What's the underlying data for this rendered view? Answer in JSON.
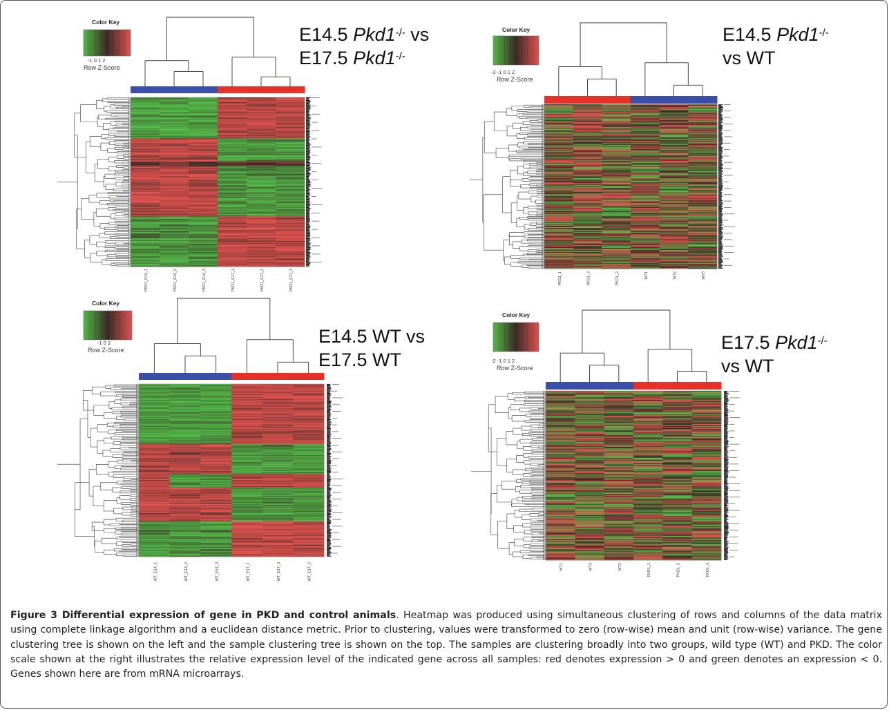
{
  "panels": [
    {
      "id": "p1",
      "title_line1_prefix": "E14.5 ",
      "title_line1_gene": "Pkd1",
      "title_line1_sup": "-/-",
      "title_line1_suffix": " vs",
      "title_line2_prefix": "E17.5 ",
      "title_line2_gene": "Pkd1",
      "title_line2_sup": "-/-",
      "title_line2_suffix": "",
      "color_key_title": "Color Key",
      "color_key_ticks": "-1   0   1   2",
      "color_key_label": "Row Z-Score",
      "group_colors": [
        "#3b4fa8",
        "#3b4fa8",
        "#3b4fa8",
        "#e53228",
        "#e53228",
        "#e53228"
      ],
      "samples": [
        "PKD1_E14_1",
        "PKD1_E14_2",
        "PKD1_E14_3",
        "PKD1_E17_1",
        "PKD1_E17_2",
        "PKD1_E17_3"
      ],
      "blocks": [
        {
          "rows": 45,
          "pattern": [
            -1,
            -1,
            -1,
            1,
            1,
            1
          ]
        },
        {
          "rows": 25,
          "pattern": [
            1,
            1,
            1,
            -1,
            -1,
            -1
          ]
        },
        {
          "rows": 5,
          "pattern": [
            0.3,
            0.3,
            0.3,
            0.3,
            0.3,
            0.3
          ]
        },
        {
          "rows": 55,
          "pattern": [
            1,
            1,
            1,
            -1,
            -1,
            -1
          ]
        },
        {
          "rows": 55,
          "pattern": [
            -1,
            -1,
            -1,
            1,
            1,
            1
          ]
        }
      ]
    },
    {
      "id": "p2",
      "title_line1_prefix": "E14.5 ",
      "title_line1_gene": "Pkd1",
      "title_line1_sup": "-/-",
      "title_line1_suffix": "",
      "title_line2_prefix": "vs WT",
      "title_line2_gene": "",
      "title_line2_sup": "",
      "title_line2_suffix": "",
      "color_key_title": "Color Key",
      "color_key_ticks": "-2  -1   0   1   2",
      "color_key_label": "Row Z-Score",
      "group_colors": [
        "#e53228",
        "#e53228",
        "#e53228",
        "#3b4fa8",
        "#3b4fa8",
        "#3b4fa8"
      ],
      "samples": [
        "PKD1_1",
        "PKD1_3",
        "PKD1_2",
        "WT1",
        "WT2",
        "WT3"
      ],
      "blocks": [
        {
          "rows": 230,
          "pattern": [
            0,
            0,
            0,
            0,
            0,
            0
          ]
        }
      ]
    },
    {
      "id": "p3",
      "title_line1_prefix": "E14.5 WT vs",
      "title_line1_gene": "",
      "title_line1_sup": "",
      "title_line1_suffix": "",
      "title_line2_prefix": "E17.5 WT",
      "title_line2_gene": "",
      "title_line2_sup": "",
      "title_line2_suffix": "",
      "color_key_title": "Color Key",
      "color_key_ticks": "-1   0   1",
      "color_key_label": "Row Z-Score",
      "group_colors": [
        "#3b4fa8",
        "#3b4fa8",
        "#3b4fa8",
        "#e53228",
        "#e53228",
        "#e53228"
      ],
      "samples": [
        "WT_E14_1",
        "WT_E14_2",
        "WT_E14_3",
        "WT_E17_1",
        "WT_E17_3",
        "WT_E17_2"
      ],
      "blocks": [
        {
          "rows": 80,
          "pattern": [
            -1,
            -1,
            -1,
            1,
            1,
            1
          ]
        },
        {
          "rows": 40,
          "pattern": [
            1,
            1,
            1,
            -1,
            -1,
            -1
          ]
        },
        {
          "rows": 18,
          "pattern": [
            1,
            -1,
            -1,
            1,
            1,
            1
          ]
        },
        {
          "rows": 45,
          "pattern": [
            1,
            1,
            1,
            -1,
            -1,
            -1
          ]
        },
        {
          "rows": 47,
          "pattern": [
            -1,
            -1,
            -1,
            1,
            1,
            1
          ]
        }
      ]
    },
    {
      "id": "p4",
      "title_line1_prefix": "E17.5 ",
      "title_line1_gene": "Pkd1",
      "title_line1_sup": "-/-",
      "title_line1_suffix": "",
      "title_line2_prefix": "vs WT",
      "title_line2_gene": "",
      "title_line2_sup": "",
      "title_line2_suffix": "",
      "color_key_title": "Color Key",
      "color_key_ticks": "-2  -1   0   1   2",
      "color_key_label": "Row Z-Score",
      "group_colors": [
        "#3b4fa8",
        "#3b4fa8",
        "#3b4fa8",
        "#e53228",
        "#e53228",
        "#e53228"
      ],
      "samples": [
        "WT1",
        "WT3",
        "WT2",
        "PKD1_1",
        "PKD1_2",
        "PKD1_3"
      ],
      "blocks": [
        {
          "rows": 230,
          "pattern": [
            0,
            0,
            0,
            0,
            0,
            0
          ]
        }
      ]
    }
  ],
  "caption": {
    "label": "Figure 3 Differential expression of gene in PKD and control animals",
    "text": ". Heatmap was produced using simultaneous clustering of rows and columns of the data matrix using complete linkage algorithm and a euclidean distance metric. Prior to clustering, values were transformed to zero (row-wise) mean and unit (row-wise) variance. The gene clustering tree is shown on the left and the sample clustering tree is shown on the top. The samples are clustering broadly into two groups, wild type (WT) and PKD. The color scale shown at the right illustrates the relative expression level of the indicated gene across all samples: red denotes expression > 0 and green denotes an expression < 0. Genes shown here are from mRNA microarrays."
  },
  "colors": {
    "heat_red": "#e0524f",
    "heat_green": "#52b948",
    "heat_dark": "#3b2b25",
    "group_blue": "#3b4fa8",
    "group_red": "#e53228"
  }
}
